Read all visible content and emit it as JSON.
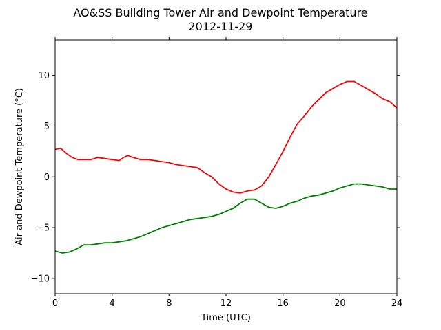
{
  "chart_data": {
    "type": "line",
    "title": "AO&SS Building Tower Air and Dewpoint Temperature",
    "subtitle": "2012-11-29",
    "xlabel": "Time (UTC)",
    "ylabel": "Air and Dewpoint Temperature (°C)",
    "xlim": [
      0,
      24
    ],
    "ylim": [
      -11.5,
      13.5
    ],
    "xticks": [
      0,
      4,
      8,
      12,
      16,
      20,
      24
    ],
    "yticks": [
      -10,
      -5,
      0,
      5,
      10
    ],
    "xtick_labels": [
      "0",
      "4",
      "8",
      "12",
      "16",
      "20",
      "24"
    ],
    "ytick_labels": [
      "−10",
      "−5",
      "0",
      "5",
      "10"
    ],
    "grid": false,
    "series": [
      {
        "color": "#ff0000",
        "x": [
          0,
          0.4,
          0.8,
          1.2,
          1.6,
          2.0,
          2.5,
          3.0,
          3.5,
          4.0,
          4.5,
          4.8,
          5.1,
          5.5,
          6.0,
          6.5,
          7.0,
          7.5,
          8.0,
          8.5,
          9.0,
          9.5,
          10.0,
          10.5,
          11.0,
          11.5,
          12.0,
          12.5,
          13.0,
          13.5,
          14.0,
          14.5,
          15.0,
          15.5,
          16.0,
          16.5,
          17.0,
          17.5,
          18.0,
          18.5,
          19.0,
          19.5,
          20.0,
          20.5,
          21.0,
          21.5,
          22.0,
          22.5,
          23.0,
          23.5,
          24.0
        ],
        "values": [
          2.7,
          2.8,
          2.3,
          1.9,
          1.7,
          1.7,
          1.7,
          1.9,
          1.8,
          1.7,
          1.6,
          1.9,
          2.1,
          1.9,
          1.7,
          1.7,
          1.6,
          1.5,
          1.4,
          1.2,
          1.1,
          1.0,
          0.9,
          0.4,
          0.0,
          -0.7,
          -1.2,
          -1.5,
          -1.6,
          -1.4,
          -1.3,
          -0.9,
          0.0,
          1.2,
          2.5,
          3.9,
          5.2,
          6.0,
          6.9,
          7.6,
          8.3,
          8.7,
          9.1,
          9.4,
          9.4,
          9.0,
          8.6,
          8.2,
          7.7,
          7.4,
          6.8
        ]
      },
      {
        "color": "#008000",
        "x": [
          0,
          0.5,
          1.0,
          1.5,
          2.0,
          2.5,
          3.0,
          3.5,
          4.0,
          4.5,
          5.0,
          5.5,
          6.0,
          6.5,
          7.0,
          7.5,
          8.0,
          8.5,
          9.0,
          9.5,
          10.0,
          10.5,
          11.0,
          11.5,
          12.0,
          12.5,
          13.0,
          13.5,
          14.0,
          14.5,
          15.0,
          15.5,
          16.0,
          16.5,
          17.0,
          17.5,
          18.0,
          18.5,
          19.0,
          19.5,
          20.0,
          20.5,
          21.0,
          21.5,
          22.0,
          22.5,
          23.0,
          23.5,
          24.0
        ],
        "values": [
          -7.3,
          -7.5,
          -7.4,
          -7.1,
          -6.7,
          -6.7,
          -6.6,
          -6.5,
          -6.5,
          -6.4,
          -6.3,
          -6.1,
          -5.9,
          -5.6,
          -5.3,
          -5.0,
          -4.8,
          -4.6,
          -4.4,
          -4.2,
          -4.1,
          -4.0,
          -3.9,
          -3.7,
          -3.4,
          -3.1,
          -2.6,
          -2.2,
          -2.2,
          -2.6,
          -3.0,
          -3.1,
          -2.9,
          -2.6,
          -2.4,
          -2.1,
          -1.9,
          -1.8,
          -1.6,
          -1.4,
          -1.1,
          -0.9,
          -0.7,
          -0.7,
          -0.8,
          -0.9,
          -1.0,
          -1.2,
          -1.2
        ]
      }
    ]
  }
}
